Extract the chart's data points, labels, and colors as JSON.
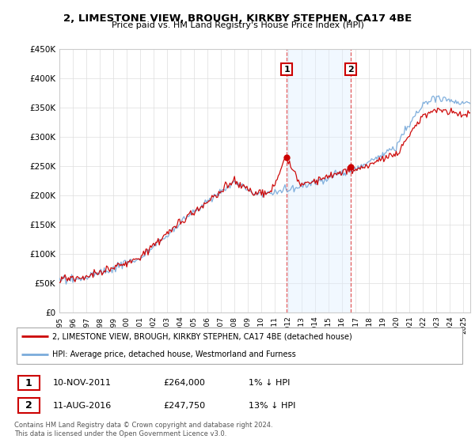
{
  "title": "2, LIMESTONE VIEW, BROUGH, KIRKBY STEPHEN, CA17 4BE",
  "subtitle": "Price paid vs. HM Land Registry's House Price Index (HPI)",
  "ylim": [
    0,
    450000
  ],
  "yticks": [
    0,
    50000,
    100000,
    150000,
    200000,
    250000,
    300000,
    350000,
    400000,
    450000
  ],
  "xlim_start": 1995.0,
  "xlim_end": 2025.5,
  "red_line_color": "#cc0000",
  "blue_line_color": "#7aabdb",
  "shade_color": "#ddeeff",
  "point1_x": 2011.87,
  "point1_y": 264000,
  "point2_x": 2016.62,
  "point2_y": 247750,
  "legend_line1": "2, LIMESTONE VIEW, BROUGH, KIRKBY STEPHEN, CA17 4BE (detached house)",
  "legend_line2": "HPI: Average price, detached house, Westmorland and Furness",
  "table_row1_date": "10-NOV-2011",
  "table_row1_price": "£264,000",
  "table_row1_hpi": "1% ↓ HPI",
  "table_row2_date": "11-AUG-2016",
  "table_row2_price": "£247,750",
  "table_row2_hpi": "13% ↓ HPI",
  "footer": "Contains HM Land Registry data © Crown copyright and database right 2024.\nThis data is licensed under the Open Government Licence v3.0.",
  "background_color": "#ffffff",
  "grid_color": "#dddddd"
}
